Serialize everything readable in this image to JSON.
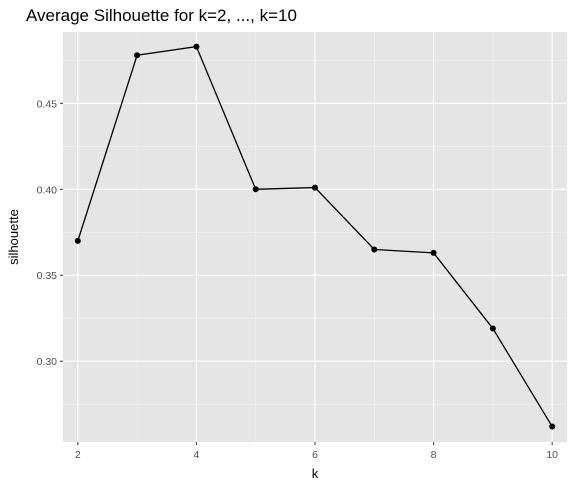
{
  "chart_data": {
    "type": "line",
    "title": "Average Silhouette for k=2, ..., k=10",
    "xlabel": "k",
    "ylabel": "silhouette",
    "x": [
      2,
      3,
      4,
      5,
      6,
      7,
      8,
      9,
      10
    ],
    "series": [
      {
        "values": [
          0.37,
          0.478,
          0.483,
          0.4,
          0.401,
          0.365,
          0.363,
          0.319,
          0.262
        ]
      }
    ],
    "xlim": [
      1.75,
      10.25
    ],
    "ylim": [
      0.253,
      0.4915
    ],
    "x_ticks": [
      2,
      4,
      6,
      8,
      10
    ],
    "x_tick_labels": [
      "2",
      "4",
      "6",
      "8",
      "10"
    ],
    "y_ticks": [
      0.3,
      0.35,
      0.4,
      0.45
    ],
    "y_tick_labels": [
      "0.30",
      "0.35",
      "0.40",
      "0.45"
    ],
    "grid": true,
    "legend": "none",
    "colors": {
      "panel_background": "#e5e5e5",
      "grid_major": "#ffffff",
      "grid_minor": "#f2f2f2",
      "line": "#000000",
      "point": "#000000",
      "tick_label": "#4d4d4d"
    }
  }
}
